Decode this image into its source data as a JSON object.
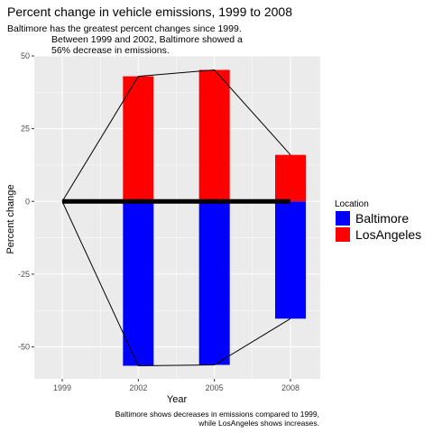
{
  "chart_data": {
    "type": "bar",
    "title": "Percent change in vehicle emissions, 1999 to 2008",
    "subtitle_lines": [
      "Baltimore has the greatest percent changes since 1999.",
      "Between 1999 and 2002, Baltimore showed a",
      "56% decrease in emissions."
    ],
    "xlabel": "Year",
    "ylabel": "Percent change",
    "caption_lines": [
      "Baltimore shows decreases in emissions compared to 1999,",
      "while LosAngeles shows increases."
    ],
    "x_ticks": [
      "1999",
      "2002",
      "2005",
      "2008"
    ],
    "y_ticks": [
      -50,
      -25,
      0,
      25,
      50
    ],
    "ylim": [
      -61,
      50
    ],
    "legend_title": "Location",
    "legend_position": "right",
    "grid": true,
    "series": [
      {
        "name": "Baltimore",
        "color": "#0000ff",
        "values": [
          0,
          -56.5,
          -56.2,
          -40.3
        ]
      },
      {
        "name": "LosAngeles",
        "color": "#ff0000",
        "values": [
          0,
          43.0,
          45.2,
          16.0
        ]
      }
    ],
    "zero_line_color": "#000000"
  }
}
